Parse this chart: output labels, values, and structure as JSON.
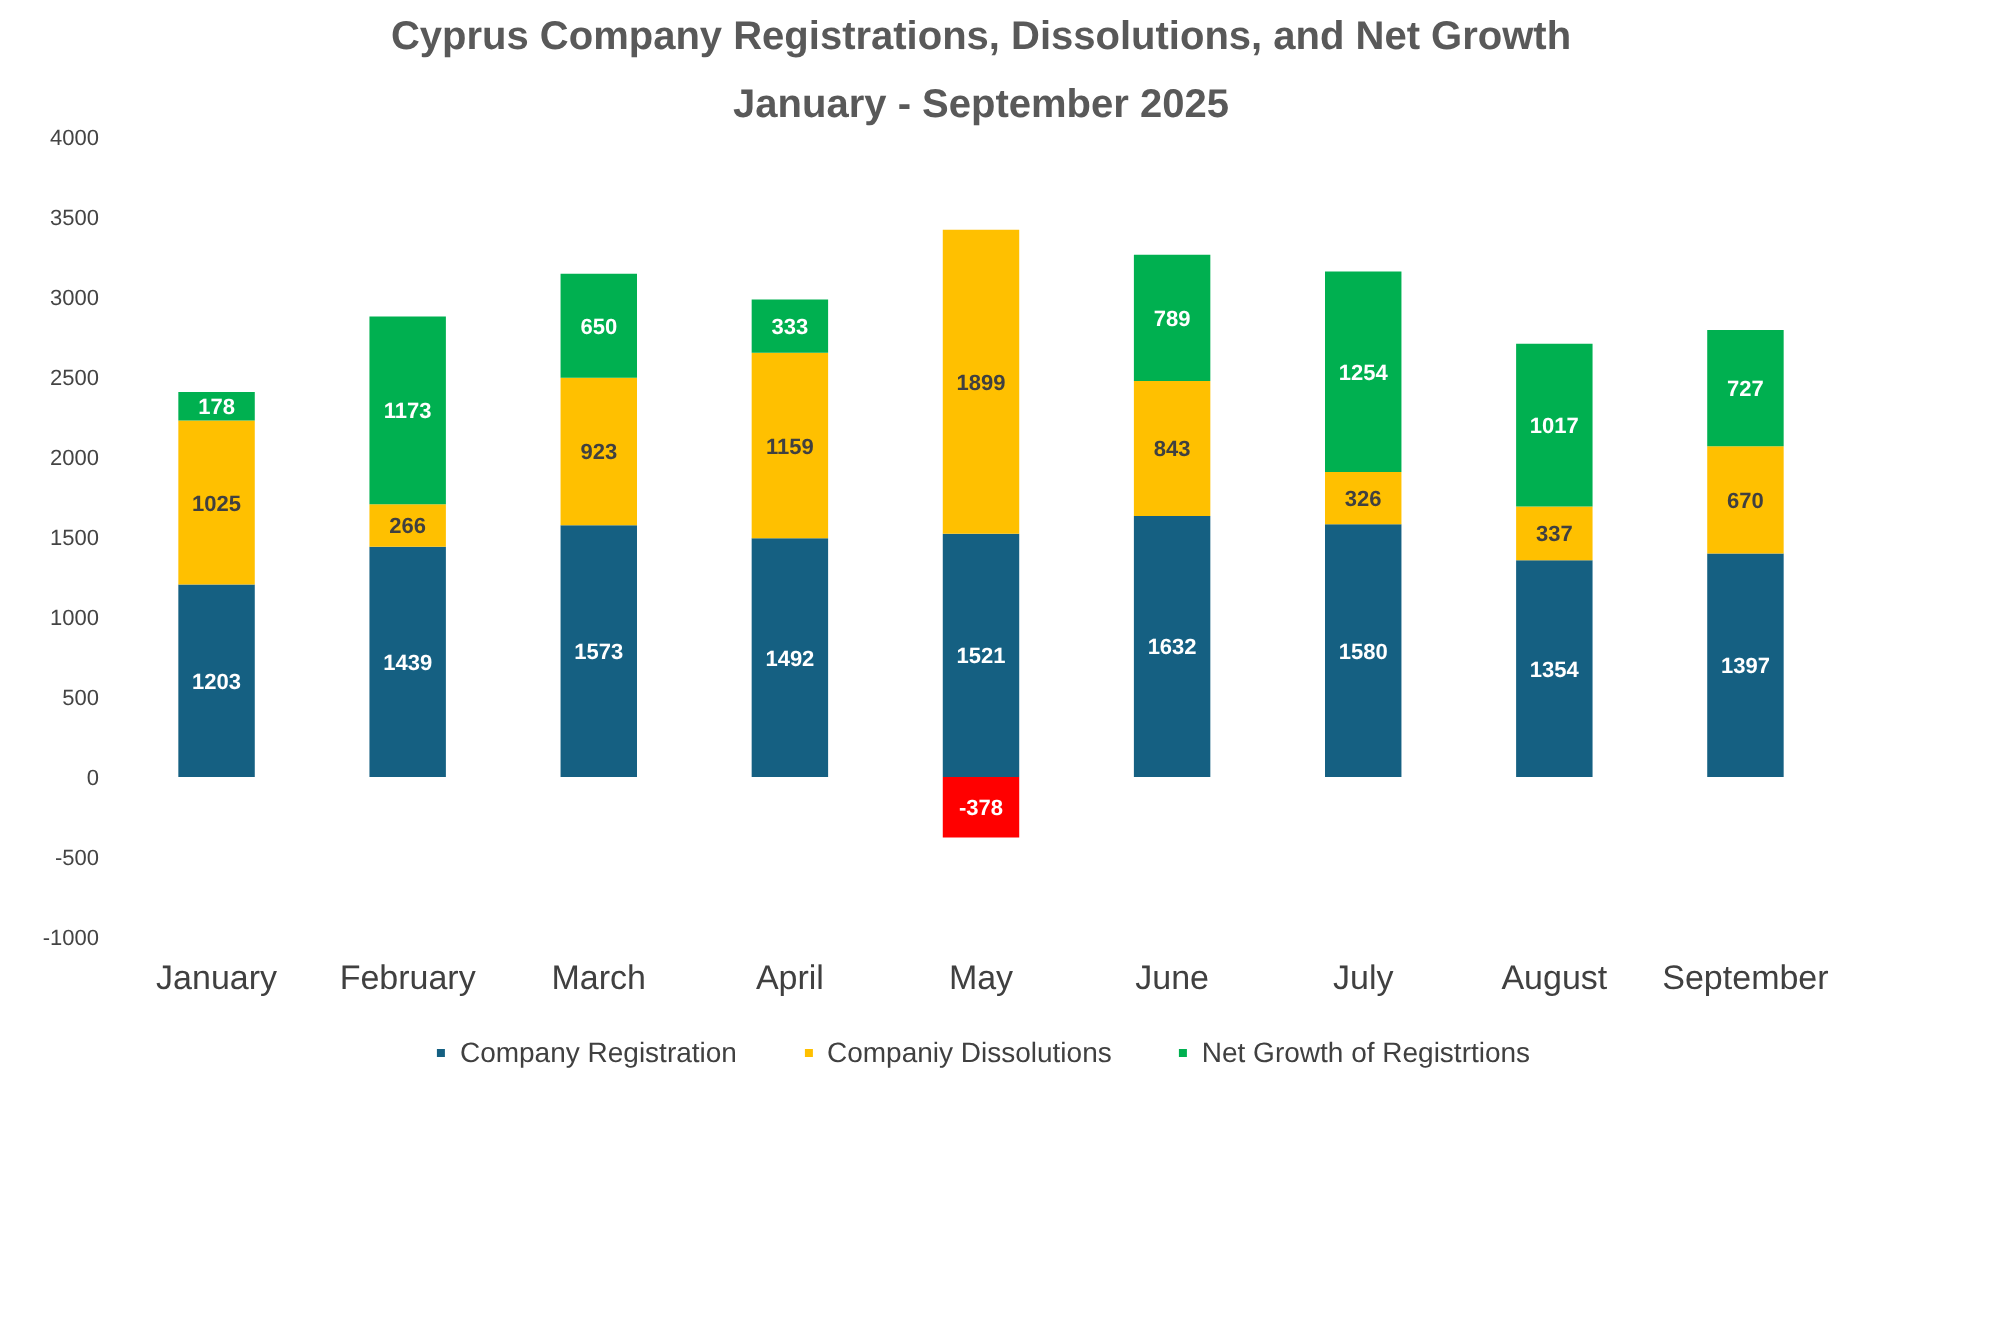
{
  "chart_data": {
    "type": "bar",
    "title": "Cyprus Company Registrations, Dissolutions, and Net Growth",
    "subtitle": "January - September 2025",
    "categories": [
      "January",
      "February",
      "March",
      "April",
      "May",
      "June",
      "July",
      "August",
      "September"
    ],
    "stacked": true,
    "data_labels": true,
    "grid": false,
    "legend": "bottom",
    "ylim": [
      -1000,
      4000
    ],
    "yticks": [
      -1000,
      -500,
      0,
      500,
      1000,
      1500,
      2000,
      2500,
      3000,
      3500,
      4000
    ],
    "series": [
      {
        "name": "Company Registration",
        "color": "#156082",
        "values": [
          1203,
          1439,
          1573,
          1492,
          1521,
          1632,
          1580,
          1354,
          1397
        ]
      },
      {
        "name": "Companiy Dissolutions",
        "color": "#ffc000",
        "values": [
          1025,
          266,
          923,
          1159,
          1899,
          843,
          326,
          337,
          670
        ]
      },
      {
        "name": "Net Growth of Registrtions",
        "color": "#00b050",
        "colors": [
          "#00b050",
          "#00b050",
          "#00b050",
          "#00b050",
          "#ff0000",
          "#00b050",
          "#00b050",
          "#00b050",
          "#00b050"
        ],
        "values": [
          178,
          1173,
          650,
          333,
          -378,
          789,
          1254,
          1017,
          727
        ]
      }
    ]
  }
}
